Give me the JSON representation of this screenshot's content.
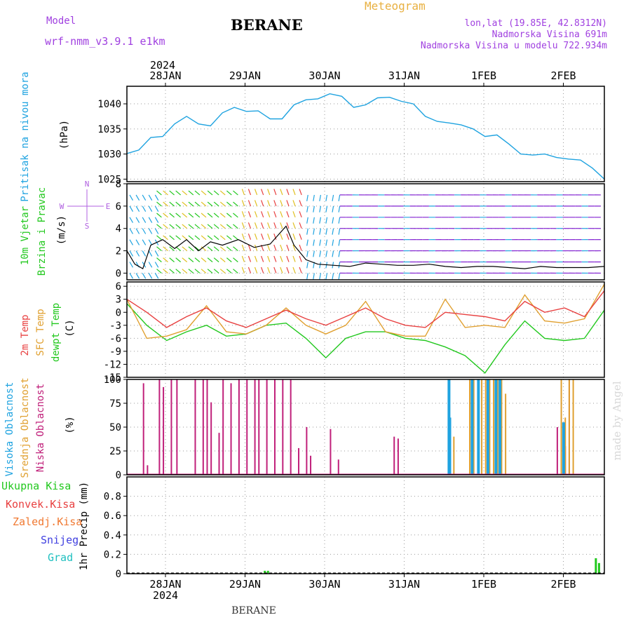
{
  "header": {
    "model_label": "Model",
    "model_name": "wrf-nmm_v3.9.1  e1km",
    "station": "BERANE",
    "title": "Meteogram",
    "coords": "lon,lat (19.85E, 42.8312N)",
    "altitude": "Nadmorska Visina 691m",
    "model_altitude": "Nadmorska Visina u modelu 722.934m",
    "year_top": "2024",
    "year_bottom": "2024",
    "footer_station": "BERANE",
    "watermark": "made by Angel"
  },
  "colors": {
    "pressure": "#1fa3e0",
    "temp2m": "#e84040",
    "sfc_temp": "#e0a030",
    "dewpt": "#22c81e",
    "cloud_high": "#1fa3e0",
    "cloud_mid": "#e0a030",
    "cloud_low": "#c0207a",
    "rain_total": "#22c81e",
    "rain_conv": "#e84040",
    "freezing": "#f07830",
    "snow": "#4040e0",
    "hail": "#20c0c0",
    "title_orange": "#e8b040",
    "purple": "#a040e0",
    "wind_axis": "#b060e0"
  },
  "chart_data": [
    {
      "type": "line",
      "panel": "pressure",
      "ylabel_side": "Pritisak na nivou mora",
      "ylabel": "(hPa)",
      "ylim": [
        1024.5,
        1043.5
      ],
      "yticks": [
        1025,
        1030,
        1035,
        1040
      ],
      "grid": true,
      "x_categories": [
        "28JAN",
        "29JAN",
        "30JAN",
        "31JAN",
        "1FEB",
        "2FEB"
      ],
      "x_range_days": [
        0,
        6
      ],
      "series": [
        {
          "name": "",
          "x_days": [
            0.0,
            0.15,
            0.3,
            0.45,
            0.6,
            0.75,
            0.9,
            1.05,
            1.2,
            1.35,
            1.5,
            1.65,
            1.8,
            1.95,
            2.1,
            2.25,
            2.4,
            2.55,
            2.7,
            2.85,
            3.0,
            3.15,
            3.3,
            3.45,
            3.6,
            3.75,
            3.9,
            4.05,
            4.2,
            4.35,
            4.5,
            4.65,
            4.8,
            4.95,
            5.1,
            5.25,
            5.4,
            5.55,
            5.7,
            5.85,
            6.0
          ],
          "values": [
            1030.1,
            1030.8,
            1033.3,
            1033.5,
            1036.0,
            1037.5,
            1036.0,
            1035.6,
            1038.2,
            1039.3,
            1038.5,
            1038.6,
            1037.0,
            1037.0,
            1039.8,
            1040.8,
            1041.0,
            1042.0,
            1041.5,
            1039.3,
            1039.8,
            1041.2,
            1041.3,
            1040.5,
            1040.0,
            1037.5,
            1036.5,
            1036.2,
            1035.8,
            1035.0,
            1033.5,
            1033.8,
            1032.0,
            1030.0,
            1029.8,
            1030.0,
            1029.3,
            1029.0,
            1028.8,
            1027.2,
            1025.0
          ]
        }
      ]
    },
    {
      "type": "line",
      "panel": "wind",
      "ylabel_side_1": "10m Vjetar",
      "ylabel_side_2": "Brzina i Pravac",
      "ylabel": "(m/s)",
      "ylim": [
        -0.6,
        8.0
      ],
      "yticks": [
        0,
        2,
        4,
        6,
        8
      ],
      "compass": {
        "n": "N",
        "s": "S",
        "w": "W",
        "e": "E"
      },
      "series": [
        {
          "name": "",
          "x_days": [
            0.0,
            0.1,
            0.2,
            0.3,
            0.45,
            0.6,
            0.75,
            0.9,
            1.05,
            1.2,
            1.4,
            1.6,
            1.8,
            2.0,
            2.1,
            2.25,
            2.4,
            2.6,
            2.8,
            3.0,
            3.2,
            3.4,
            3.6,
            3.8,
            4.0,
            4.2,
            4.4,
            4.6,
            4.8,
            5.0,
            5.2,
            5.4,
            5.6,
            5.8,
            6.0
          ],
          "values": [
            2.0,
            0.8,
            0.4,
            2.5,
            3.0,
            2.2,
            3.0,
            2.0,
            2.8,
            2.5,
            3.0,
            2.3,
            2.6,
            4.2,
            2.5,
            1.2,
            0.8,
            0.7,
            0.6,
            0.9,
            0.8,
            0.7,
            0.7,
            0.8,
            0.6,
            0.5,
            0.6,
            0.6,
            0.5,
            0.4,
            0.6,
            0.5,
            0.5,
            0.5,
            0.6
          ]
        }
      ]
    },
    {
      "type": "line",
      "panel": "temperature",
      "ylabel_side_1": "2m Temp",
      "ylabel_side_2": "SFC Temp",
      "ylabel_side_3": "dewpt Temp",
      "ylabel": "(C)",
      "ylim": [
        -15,
        7
      ],
      "yticks": [
        -15,
        -12,
        -9,
        -6,
        -3,
        0,
        3,
        6
      ],
      "series": [
        {
          "name": "2m Temp",
          "x_days": [
            0.0,
            0.25,
            0.5,
            0.75,
            1.0,
            1.25,
            1.5,
            1.75,
            2.0,
            2.25,
            2.5,
            2.75,
            3.0,
            3.25,
            3.5,
            3.75,
            4.0,
            4.25,
            4.5,
            4.75,
            5.0,
            5.25,
            5.5,
            5.75,
            6.0
          ],
          "values": [
            3.0,
            0.0,
            -3.5,
            -1.0,
            1.0,
            -2.0,
            -3.5,
            -1.5,
            0.5,
            -1.5,
            -3.0,
            -1.0,
            1.0,
            -1.5,
            -3.0,
            -3.5,
            0.0,
            -0.5,
            -1.0,
            -2.0,
            2.5,
            0.0,
            1.0,
            -1.0,
            5.0
          ]
        },
        {
          "name": "SFC Temp",
          "x_days": [
            0.0,
            0.25,
            0.5,
            0.75,
            1.0,
            1.25,
            1.5,
            1.75,
            2.0,
            2.25,
            2.5,
            2.75,
            3.0,
            3.25,
            3.5,
            3.75,
            4.0,
            4.25,
            4.5,
            4.75,
            5.0,
            5.25,
            5.5,
            5.75,
            6.0
          ],
          "values": [
            3.0,
            -6.0,
            -5.5,
            -4.0,
            1.5,
            -4.5,
            -5.0,
            -3.0,
            1.0,
            -3.0,
            -5.0,
            -3.0,
            2.5,
            -4.5,
            -5.5,
            -5.5,
            3.0,
            -3.5,
            -3.0,
            -3.5,
            4.0,
            -2.0,
            -2.5,
            -1.5,
            6.5
          ]
        },
        {
          "name": "dewpt Temp",
          "x_days": [
            0.0,
            0.25,
            0.5,
            0.75,
            1.0,
            1.25,
            1.5,
            1.75,
            2.0,
            2.25,
            2.5,
            2.75,
            3.0,
            3.25,
            3.5,
            3.75,
            4.0,
            4.25,
            4.5,
            4.75,
            5.0,
            5.25,
            5.5,
            5.75,
            6.0
          ],
          "values": [
            2.0,
            -3.0,
            -6.5,
            -4.5,
            -3.0,
            -5.5,
            -5.0,
            -3.0,
            -2.5,
            -6.0,
            -10.5,
            -6.0,
            -4.5,
            -4.5,
            -6.0,
            -6.5,
            -8.0,
            -10.0,
            -14.0,
            -7.5,
            -2.0,
            -6.0,
            -6.5,
            -6.0,
            0.5
          ]
        }
      ]
    },
    {
      "type": "bar",
      "panel": "clouds",
      "ylabel_side_1": "Visoka Oblacnost",
      "ylabel_side_2": "Srednja Oblacnost",
      "ylabel_side_3": "Niska Oblacnost",
      "ylabel": "(%)",
      "ylim": [
        0,
        100
      ],
      "yticks": [
        0,
        25,
        50,
        75,
        100
      ],
      "series": [
        {
          "name": "Niska Oblacnost",
          "x_days": [
            0.2,
            0.25,
            0.4,
            0.45,
            0.55,
            0.62,
            0.85,
            0.95,
            1.0,
            1.05,
            1.15,
            1.2,
            1.3,
            1.4,
            1.5,
            1.6,
            1.65,
            1.75,
            1.85,
            1.95,
            2.05,
            2.15,
            2.25,
            2.3,
            2.55,
            2.65,
            3.35,
            3.4,
            5.4,
            5.5,
            5.55
          ],
          "values": [
            96,
            10,
            100,
            92,
            100,
            100,
            100,
            100,
            100,
            76,
            44,
            100,
            96,
            100,
            100,
            100,
            100,
            100,
            100,
            100,
            100,
            28,
            50,
            20,
            48,
            16,
            40,
            38,
            50,
            30,
            100
          ]
        },
        {
          "name": "Srednja Oblacnost",
          "x_days": [
            4.1,
            4.3,
            4.35,
            4.45,
            4.5,
            4.55,
            4.6,
            4.65,
            4.7,
            4.75,
            5.45,
            5.5,
            5.55,
            5.6
          ],
          "values": [
            40,
            100,
            100,
            100,
            100,
            100,
            100,
            100,
            100,
            85,
            100,
            60,
            100,
            100
          ]
        },
        {
          "name": "Visoka Oblacnost",
          "x_days": [
            4.03,
            4.04,
            4.32,
            4.4,
            4.52,
            4.62,
            4.67,
            5.47
          ],
          "values": [
            100,
            60,
            100,
            100,
            100,
            100,
            100,
            55
          ]
        }
      ]
    },
    {
      "type": "bar",
      "panel": "precipitation",
      "ylabel": "1hr Precip (mm)",
      "ylim": [
        0,
        1.0
      ],
      "yticks": [
        0,
        0.2,
        0.4,
        0.6,
        0.8
      ],
      "legend": [
        "Ukupna Kisa",
        "Konvek.Kisa",
        "Zaledj.Kisa",
        "Snijeg",
        "Grad"
      ],
      "series": [
        {
          "name": "Ukupna Kisa",
          "x_days": [
            1.72,
            1.76,
            5.88,
            5.92
          ],
          "values": [
            0.03,
            0.03,
            0.16,
            0.11
          ]
        }
      ]
    }
  ]
}
